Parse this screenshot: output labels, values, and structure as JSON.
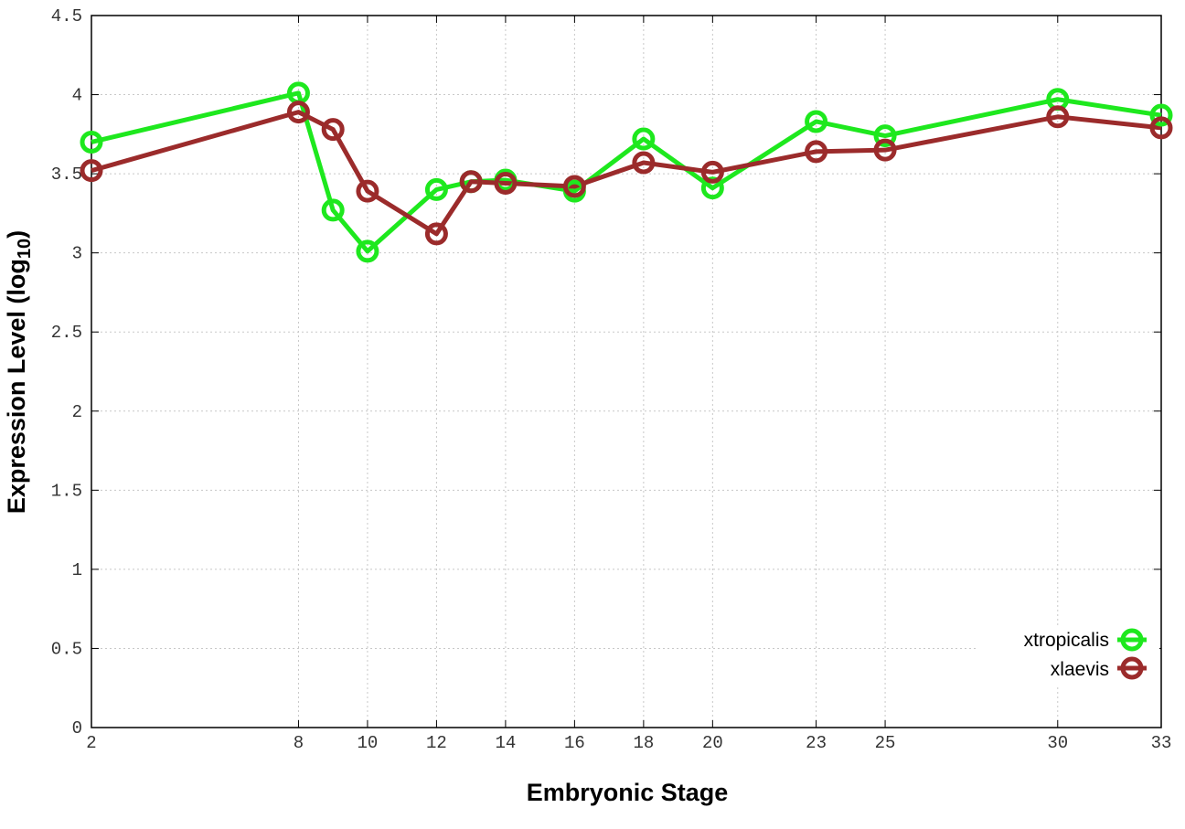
{
  "chart_data": {
    "type": "line",
    "x": [
      "2",
      "8",
      "9",
      "10",
      "12",
      "13",
      "14",
      "16",
      "18",
      "20",
      "23",
      "25",
      "30",
      "33"
    ],
    "x_tick_labels": [
      "2",
      "8",
      "10",
      "12",
      "14",
      "16",
      "18",
      "20",
      "23",
      "25",
      "30",
      "33"
    ],
    "y_tick_labels": [
      "0",
      "0.5",
      "1",
      "1.5",
      "2",
      "2.5",
      "3",
      "3.5",
      "4",
      "4.5"
    ],
    "ylim": [
      0,
      4.5
    ],
    "xlabel": "Embryonic Stage",
    "ylabel_main": "Expression Level (log",
    "ylabel_sub": "10",
    "ylabel_end": ")",
    "grid": true,
    "legend_position": "bottom-right",
    "series": [
      {
        "name": "xtropicalis",
        "color": "#1ee81e",
        "values": [
          3.7,
          4.01,
          3.27,
          3.01,
          3.4,
          3.45,
          3.46,
          3.39,
          3.72,
          3.41,
          3.83,
          3.74,
          3.97,
          3.87
        ]
      },
      {
        "name": "xlaevis",
        "color": "#9b2b2b",
        "values": [
          3.52,
          3.89,
          3.78,
          3.39,
          3.12,
          3.45,
          3.44,
          3.42,
          3.57,
          3.51,
          3.64,
          3.65,
          3.86,
          3.79
        ]
      }
    ]
  }
}
